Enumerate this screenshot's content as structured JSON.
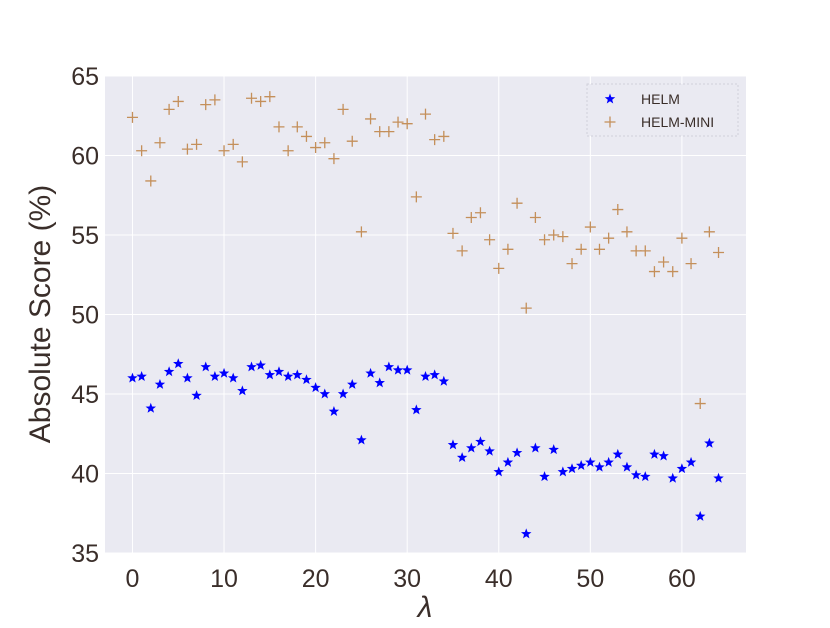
{
  "chart_data": {
    "type": "scatter",
    "xlabel": "λ",
    "ylabel": "Absolute Score (%)",
    "xlim": [
      -3,
      67
    ],
    "ylim": [
      35,
      65
    ],
    "xticks": [
      0,
      10,
      20,
      30,
      40,
      50,
      60
    ],
    "yticks": [
      35,
      40,
      45,
      50,
      55,
      60,
      65
    ],
    "grid": true,
    "legend_position": "top-right",
    "background_color": "#eaeaf2",
    "series": [
      {
        "name": "HELM",
        "marker": "star",
        "color": "#0000ff",
        "x": [
          0,
          1,
          2,
          3,
          4,
          5,
          6,
          7,
          8,
          9,
          10,
          11,
          12,
          13,
          14,
          15,
          16,
          17,
          18,
          19,
          20,
          21,
          22,
          23,
          24,
          25,
          26,
          27,
          28,
          29,
          30,
          31,
          32,
          33,
          34,
          35,
          36,
          37,
          38,
          39,
          40,
          41,
          42,
          43,
          44,
          45,
          46,
          47,
          48,
          49,
          50,
          51,
          52,
          53,
          54,
          55,
          56,
          57,
          58,
          59,
          60,
          61,
          62,
          63,
          64
        ],
        "y": [
          46.0,
          46.1,
          44.1,
          45.6,
          46.4,
          46.9,
          46.0,
          44.9,
          46.7,
          46.1,
          46.3,
          46.0,
          45.2,
          46.7,
          46.8,
          46.2,
          46.4,
          46.1,
          46.2,
          45.9,
          45.4,
          45.0,
          43.9,
          45.0,
          45.6,
          42.1,
          46.3,
          45.7,
          46.7,
          46.5,
          46.5,
          44.0,
          46.1,
          46.2,
          45.8,
          41.8,
          41.0,
          41.6,
          42.0,
          41.4,
          40.1,
          40.7,
          41.3,
          36.2,
          41.6,
          39.8,
          41.5,
          40.1,
          40.3,
          40.5,
          40.7,
          40.4,
          40.7,
          41.2,
          40.4,
          39.9,
          39.8,
          41.2,
          41.1,
          39.7,
          40.3,
          40.7,
          37.3,
          41.9,
          39.7
        ]
      },
      {
        "name": "HELM-MINI",
        "marker": "plus",
        "color": "#c48f5a",
        "x": [
          0,
          1,
          2,
          3,
          4,
          5,
          6,
          7,
          8,
          9,
          10,
          11,
          12,
          13,
          14,
          15,
          16,
          17,
          18,
          19,
          20,
          21,
          22,
          23,
          24,
          25,
          26,
          27,
          28,
          29,
          30,
          31,
          32,
          33,
          34,
          35,
          36,
          37,
          38,
          39,
          40,
          41,
          42,
          43,
          44,
          45,
          46,
          47,
          48,
          49,
          50,
          51,
          52,
          53,
          54,
          55,
          56,
          57,
          58,
          59,
          60,
          61,
          62,
          63,
          64
        ],
        "y": [
          62.4,
          60.3,
          58.4,
          60.8,
          62.9,
          63.4,
          60.4,
          60.7,
          63.2,
          63.5,
          60.3,
          60.7,
          59.6,
          63.6,
          63.4,
          63.7,
          61.8,
          60.3,
          61.8,
          61.2,
          60.5,
          60.8,
          59.8,
          62.9,
          60.9,
          55.2,
          62.3,
          61.5,
          61.5,
          62.1,
          62.0,
          57.4,
          62.6,
          61.0,
          61.2,
          55.1,
          54.0,
          56.1,
          56.4,
          54.7,
          52.9,
          54.1,
          57.0,
          50.4,
          56.1,
          54.7,
          55.0,
          54.9,
          53.2,
          54.1,
          55.5,
          54.1,
          54.8,
          56.6,
          55.2,
          54.0,
          54.0,
          52.7,
          53.3,
          52.7,
          54.8,
          53.2,
          44.4,
          55.2,
          53.9
        ]
      }
    ]
  }
}
